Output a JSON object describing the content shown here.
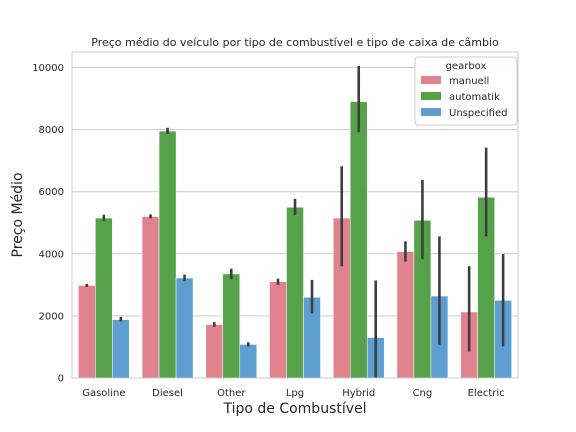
{
  "chart_data": {
    "type": "bar",
    "title": "Preço médio do veículo por tipo de combustível e tipo de caixa de câmbio",
    "xlabel": "Tipo de Combustível",
    "ylabel": "Preço Médio",
    "ylim": [
      0,
      10500
    ],
    "yticks": [
      0,
      2000,
      4000,
      6000,
      8000,
      10000
    ],
    "grid": "horizontal",
    "legend": {
      "title": "gearbox",
      "placement": "top-right"
    },
    "categories": [
      "Gasoline",
      "Diesel",
      "Other",
      "Lpg",
      "Hybrid",
      "Cng",
      "Electric"
    ],
    "series": [
      {
        "name": "manuell",
        "color": "#e0838f",
        "values": [
          2980,
          5200,
          1720,
          3100,
          5150,
          4070,
          2130
        ],
        "error_low": [
          2930,
          5140,
          1650,
          3000,
          3600,
          3750,
          850
        ],
        "error_high": [
          3030,
          5270,
          1800,
          3200,
          6820,
          4400,
          3600
        ]
      },
      {
        "name": "automatik",
        "color": "#55a24a",
        "values": [
          5150,
          7950,
          3350,
          5500,
          8900,
          5080,
          5820
        ],
        "error_low": [
          5060,
          7860,
          3180,
          5250,
          7920,
          3830,
          4560
        ],
        "error_high": [
          5260,
          8060,
          3520,
          5770,
          10050,
          6380,
          7420
        ]
      },
      {
        "name": "Unspecified",
        "color": "#5f9ed1",
        "values": [
          1880,
          3220,
          1080,
          2600,
          1300,
          2640,
          2500
        ],
        "error_low": [
          1820,
          3120,
          1010,
          2080,
          0,
          1070,
          1020
        ],
        "error_high": [
          1970,
          3330,
          1150,
          3160,
          3140,
          4560,
          3990
        ]
      }
    ]
  }
}
